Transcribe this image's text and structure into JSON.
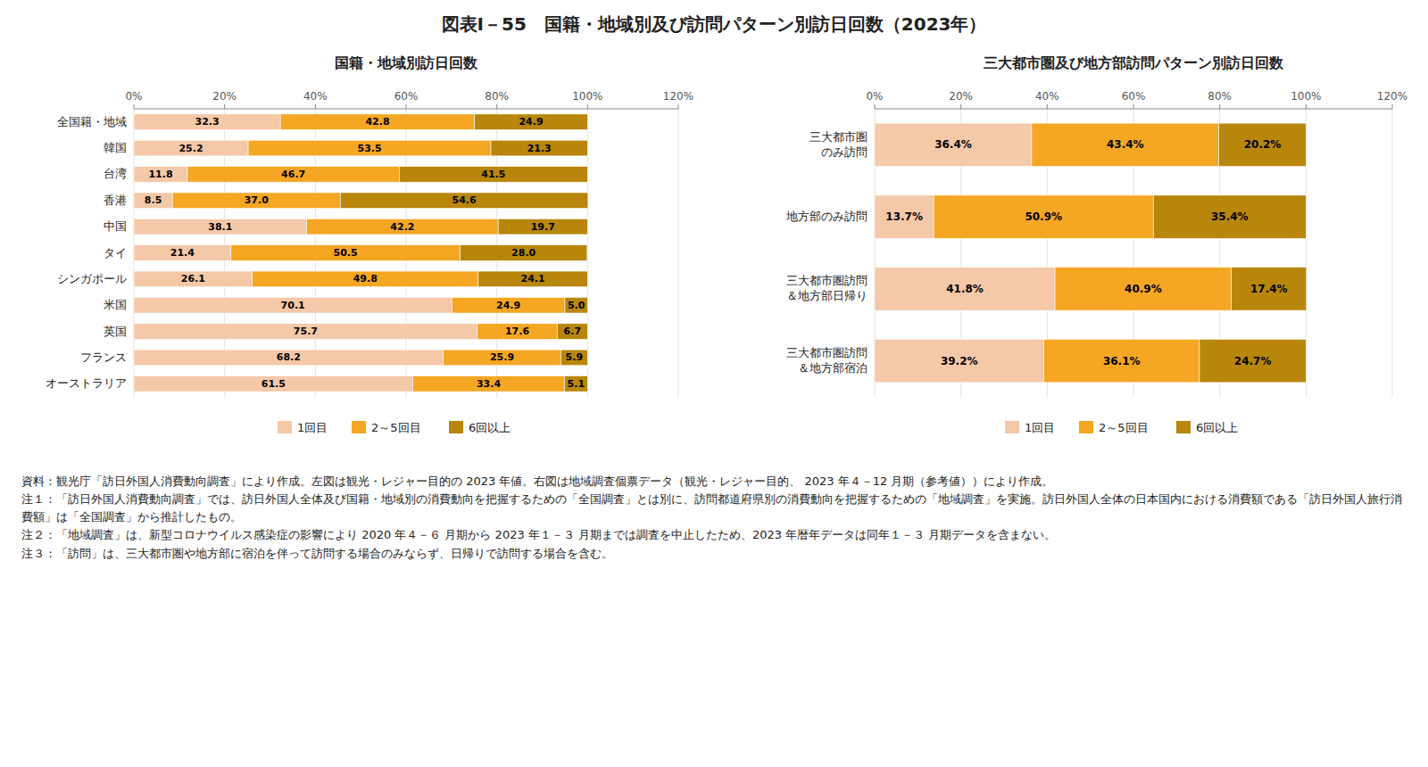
{
  "title": "図表Ⅰ－55　国籍・地域別及び訪問パターン別訪日回数（2023年）",
  "annotations": [
    "資料：観光庁「訪日外国人消費動向調査」により作成。左図は観光・レジャー目的の 2023 年値。右図は地域調査個票データ（観光・レジャー目的、 2023 年４－12 月期（参考値））により作成。",
    "注１：「訪日外国人消費動向調査」では、訪日外国人全体及び国籍・地域別の消費動向を把握するための「全国調査」とは別に、訪問都道府県別の消費動向を把握するための「地域調査」を実施。訪日外国人全体の日本国内における消費額である「訪日外国人旅行消費額」は「全国調査」から推計したもの。",
    "注２：「地域調査」は、新型コロナウイルス感染症の影響により 2020 年４－６ 月期から 2023 年１－３ 月期までは調査を中止したため、2023 年暦年データは同年１－３ 月期データを含まない。",
    "注３：「訪問」は、三大都市圏や地方部に宿泊を伴って訪問する場合のみならず、日帰りで訪問する場合を含む。"
  ],
  "chart_data": [
    {
      "type": "bar",
      "orientation": "horizontal",
      "stacked": true,
      "data_labels": true,
      "grid": true,
      "legend": "bottom",
      "title": "国籍・地域別訪日回数",
      "categories": [
        "全国籍・地域",
        "韓国",
        "台湾",
        "香港",
        "中国",
        "タイ",
        "シンガポール",
        "米国",
        "英国",
        "フランス",
        "オーストラリア"
      ],
      "series": [
        {
          "name": "1回目",
          "color": "#F5C8A8",
          "values": [
            32.3,
            25.2,
            11.8,
            8.5,
            38.1,
            21.4,
            26.1,
            70.1,
            75.7,
            68.2,
            61.5
          ],
          "value_labels": [
            "32.3",
            "25.2",
            "11.8",
            "8.5",
            "38.1",
            "21.4",
            "26.1",
            "70.1",
            "75.7",
            "68.2",
            "61.5"
          ]
        },
        {
          "name": "2～5回目",
          "color": "#F5A623",
          "values": [
            42.8,
            53.5,
            46.7,
            37.0,
            42.2,
            50.5,
            49.8,
            24.9,
            17.6,
            25.9,
            33.4
          ],
          "value_labels": [
            "42.8",
            "53.5",
            "46.7",
            "37.0",
            "42.2",
            "50.5",
            "49.8",
            "24.9",
            "17.6",
            "25.9",
            "33.4"
          ]
        },
        {
          "name": "6回以上",
          "color": "#B8860B",
          "values": [
            24.9,
            21.3,
            41.5,
            54.6,
            19.7,
            28.0,
            24.1,
            5.0,
            6.7,
            5.9,
            5.1
          ],
          "value_labels": [
            "24.9",
            "21.3",
            "41.5",
            "54.6",
            "19.7",
            "28.0",
            "24.1",
            "5.0",
            "6.7",
            "5.9",
            "5.1"
          ]
        }
      ],
      "xlim": [
        0,
        120
      ],
      "xticks": [
        {
          "value": 0,
          "label": "0%"
        },
        {
          "value": 20,
          "label": "20%"
        },
        {
          "value": 40,
          "label": "40%"
        },
        {
          "value": 60,
          "label": "60%"
        },
        {
          "value": 80,
          "label": "80%"
        },
        {
          "value": 100,
          "label": "100%"
        },
        {
          "value": 120,
          "label": "120%"
        }
      ]
    },
    {
      "type": "bar",
      "orientation": "horizontal",
      "stacked": true,
      "data_labels": true,
      "grid": true,
      "legend": "bottom",
      "title": "三大都市圏及び地方部訪問パターン別訪日回数",
      "categories": [
        "三大都市圏\nのみ訪問",
        "地方部のみ訪問",
        "三大都市圏訪問\n＆地方部日帰り",
        "三大都市圏訪問\n＆地方部宿泊"
      ],
      "series": [
        {
          "name": "1回目",
          "color": "#F5C8A8",
          "values": [
            36.4,
            13.7,
            41.8,
            39.2
          ],
          "value_labels": [
            "36.4%",
            "13.7%",
            "41.8%",
            "39.2%"
          ]
        },
        {
          "name": "2～5回目",
          "color": "#F5A623",
          "values": [
            43.4,
            50.9,
            40.9,
            36.1
          ],
          "value_labels": [
            "43.4%",
            "50.9%",
            "40.9%",
            "36.1%"
          ]
        },
        {
          "name": "6回以上",
          "color": "#B8860B",
          "values": [
            20.2,
            35.4,
            17.4,
            24.7
          ],
          "value_labels": [
            "20.2%",
            "35.4%",
            "17.4%",
            "24.7%"
          ]
        }
      ],
      "xlim": [
        0,
        120
      ],
      "xticks": [
        {
          "value": 0,
          "label": "0%"
        },
        {
          "value": 20,
          "label": "20%"
        },
        {
          "value": 40,
          "label": "40%"
        },
        {
          "value": 60,
          "label": "60%"
        },
        {
          "value": 80,
          "label": "80%"
        },
        {
          "value": 100,
          "label": "100%"
        },
        {
          "value": 120,
          "label": "120%"
        }
      ]
    }
  ]
}
